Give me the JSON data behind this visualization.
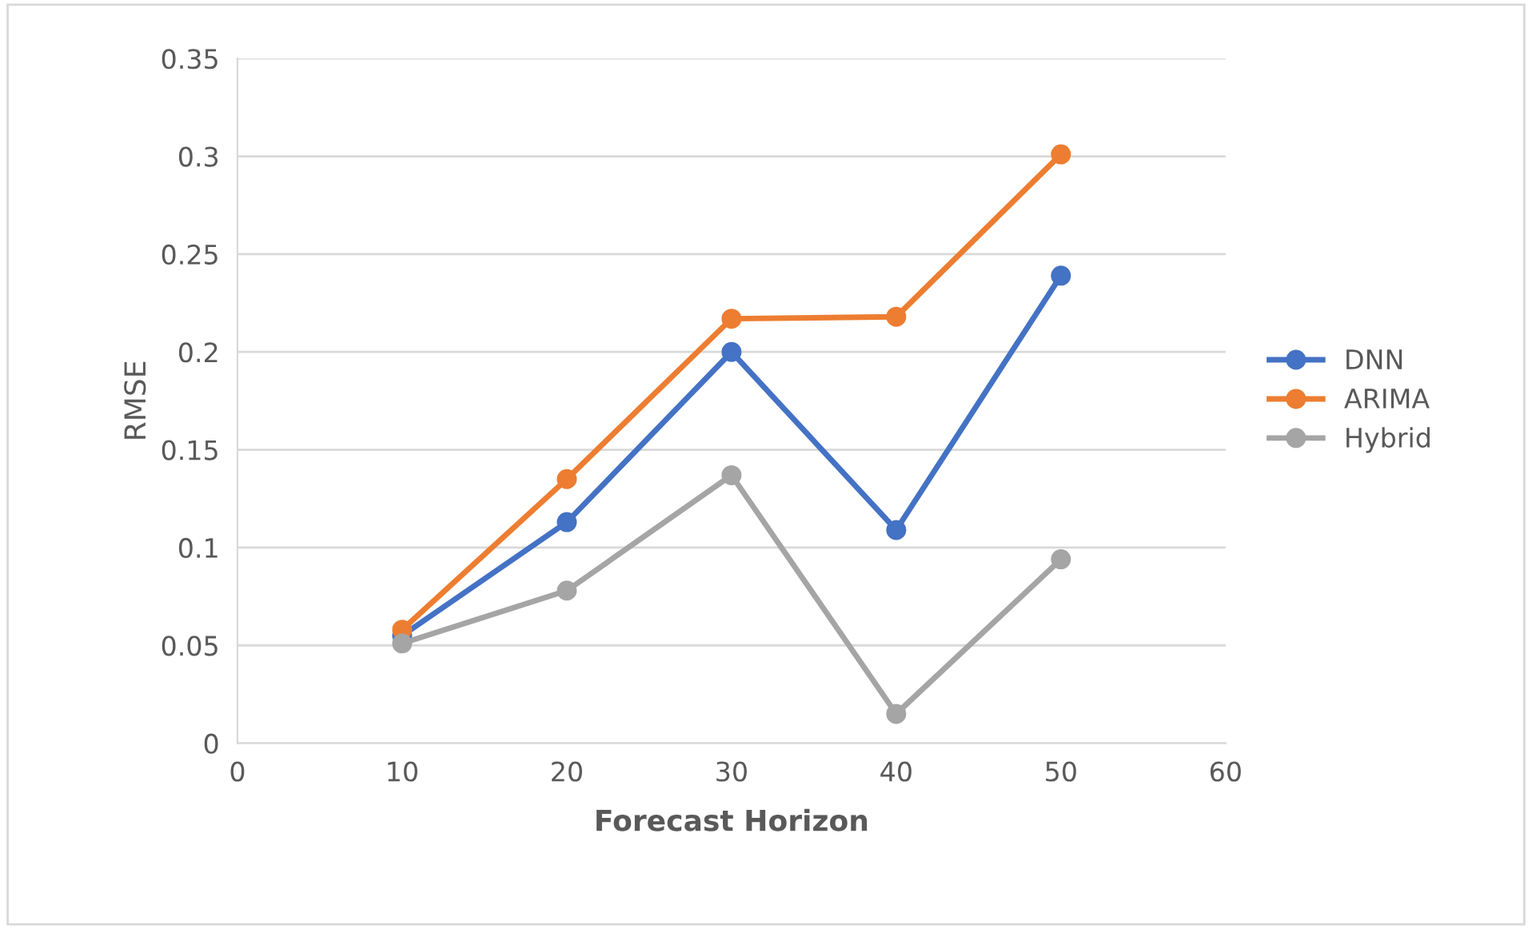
{
  "chart_data": {
    "type": "line",
    "xlabel": "Forecast Horizon",
    "ylabel": "RMSE",
    "x": [
      10,
      20,
      30,
      40,
      50
    ],
    "series": [
      {
        "name": "DNN",
        "color": "#4472c4",
        "values": [
          0.055,
          0.113,
          0.2,
          0.109,
          0.239
        ]
      },
      {
        "name": "ARIMA",
        "color": "#ed7d31",
        "values": [
          0.058,
          0.135,
          0.217,
          0.218,
          0.301
        ]
      },
      {
        "name": "Hybrid",
        "color": "#a5a5a5",
        "values": [
          0.051,
          0.078,
          0.137,
          0.015,
          0.094
        ]
      }
    ],
    "xlim": [
      0,
      60
    ],
    "xticks": [
      0,
      10,
      20,
      30,
      40,
      50,
      60
    ],
    "ylim": [
      0,
      0.35
    ],
    "yticks": [
      0,
      0.05,
      0.1,
      0.15,
      0.2,
      0.25,
      0.3,
      0.35
    ],
    "grid": "y",
    "legend": "right",
    "marker": "circle",
    "line_style": "solid"
  }
}
